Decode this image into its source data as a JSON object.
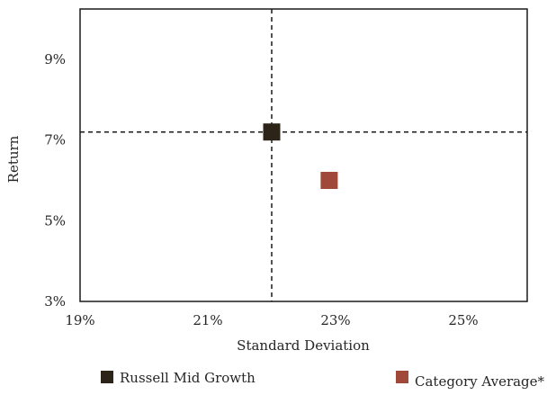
{
  "chart_data": {
    "type": "scatter",
    "title": "",
    "xlabel": "Standard Deviation",
    "ylabel": "Return",
    "xlim": [
      19,
      25.5
    ],
    "ylim": [
      3,
      10.4
    ],
    "x_ticks": [
      19,
      21,
      23,
      25
    ],
    "x_tick_labels": [
      "19%",
      "21%",
      "23%",
      "25%"
    ],
    "y_ticks": [
      3,
      5,
      7,
      9
    ],
    "y_tick_labels": [
      "3%",
      "5%",
      "7%",
      "9%"
    ],
    "grid": false,
    "legend_position": "bottom",
    "series": [
      {
        "name": "Russell Mid Growth",
        "color": "#2d2419",
        "marker": "square",
        "x": [
          22.0
        ],
        "y": [
          7.2
        ],
        "crosshair": true
      },
      {
        "name": "Category Average*",
        "color": "#a0493a",
        "marker": "square",
        "x": [
          22.9
        ],
        "y": [
          6.0
        ]
      }
    ]
  }
}
